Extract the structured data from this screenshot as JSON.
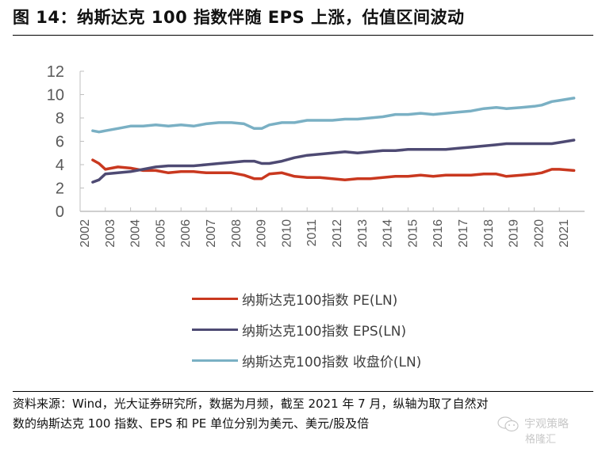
{
  "title": "图 14：纳斯达克 100 指数伴随 EPS 上涨，估值区间波动",
  "source_note_line1": "资料来源：Wind，光大证券研究所，数据为月频，截至 2021 年 7 月，纵轴为取了自然对",
  "source_note_line2": "数的纳斯达克 100 指数、EPS 和 PE  单位分别为美元、美元/股及倍",
  "watermark": {
    "line1": "宇观策略",
    "line2": "格隆汇",
    "icon": "wechat-icon"
  },
  "chart_data": {
    "type": "line",
    "title": "",
    "xlabel": "",
    "ylabel": "",
    "ylim": [
      0,
      12
    ],
    "yticks": [
      "0",
      "2",
      "4",
      "6",
      "8",
      "10",
      "12"
    ],
    "xlim": [
      2002,
      2022
    ],
    "xticks": [
      "2002",
      "2003",
      "2004",
      "2005",
      "2006",
      "2007",
      "2008",
      "2009",
      "2010",
      "2011",
      "2012",
      "2013",
      "2014",
      "2015",
      "2016",
      "2017",
      "2018",
      "2019",
      "2020",
      "2021"
    ],
    "grid": false,
    "legend_position": "bottom",
    "x": [
      2002.5,
      2002.75,
      2003.0,
      2003.5,
      2004.0,
      2004.5,
      2005.0,
      2005.5,
      2006.0,
      2006.5,
      2007.0,
      2007.5,
      2008.0,
      2008.5,
      2008.9,
      2009.2,
      2009.5,
      2010.0,
      2010.5,
      2011.0,
      2011.5,
      2012.0,
      2012.5,
      2013.0,
      2013.5,
      2014.0,
      2014.5,
      2015.0,
      2015.5,
      2016.0,
      2016.5,
      2017.0,
      2017.5,
      2018.0,
      2018.5,
      2018.9,
      2019.5,
      2020.0,
      2020.3,
      2020.7,
      2021.0,
      2021.58
    ],
    "series": [
      {
        "name": "纳斯达克100指数 PE(LN)",
        "color": "#c9381f",
        "values": [
          4.4,
          4.1,
          3.6,
          3.8,
          3.7,
          3.5,
          3.5,
          3.3,
          3.4,
          3.4,
          3.3,
          3.3,
          3.3,
          3.1,
          2.8,
          2.8,
          3.2,
          3.3,
          3.0,
          2.9,
          2.9,
          2.8,
          2.7,
          2.8,
          2.8,
          2.9,
          3.0,
          3.0,
          3.1,
          3.0,
          3.1,
          3.1,
          3.1,
          3.2,
          3.2,
          3.0,
          3.1,
          3.2,
          3.3,
          3.6,
          3.6,
          3.5
        ]
      },
      {
        "name": "纳斯达克100指数 EPS(LN)",
        "color": "#4e4a73",
        "values": [
          2.5,
          2.7,
          3.2,
          3.3,
          3.4,
          3.6,
          3.8,
          3.9,
          3.9,
          3.9,
          4.0,
          4.1,
          4.2,
          4.3,
          4.3,
          4.1,
          4.1,
          4.3,
          4.6,
          4.8,
          4.9,
          5.0,
          5.1,
          5.0,
          5.1,
          5.2,
          5.2,
          5.3,
          5.3,
          5.3,
          5.3,
          5.4,
          5.5,
          5.6,
          5.7,
          5.8,
          5.8,
          5.8,
          5.8,
          5.8,
          5.9,
          6.1
        ]
      },
      {
        "name": "纳斯达克100指数 收盘价(LN)",
        "color": "#7ab0c4",
        "values": [
          6.9,
          6.8,
          6.9,
          7.1,
          7.3,
          7.3,
          7.4,
          7.3,
          7.4,
          7.3,
          7.5,
          7.6,
          7.6,
          7.5,
          7.1,
          7.1,
          7.4,
          7.6,
          7.6,
          7.8,
          7.8,
          7.8,
          7.9,
          7.9,
          8.0,
          8.1,
          8.3,
          8.3,
          8.4,
          8.3,
          8.4,
          8.5,
          8.6,
          8.8,
          8.9,
          8.8,
          8.9,
          9.0,
          9.1,
          9.4,
          9.5,
          9.7
        ]
      }
    ]
  }
}
